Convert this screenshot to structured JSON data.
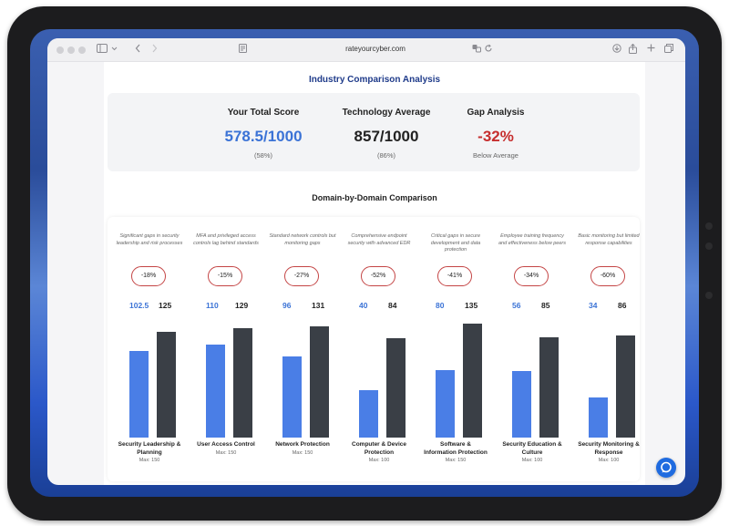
{
  "browser": {
    "url": "rateyourcyber.com"
  },
  "page": {
    "title": "Industry Comparison Analysis",
    "summary": {
      "your_score": {
        "label": "Your Total Score",
        "value": "578.5/1000",
        "sub": "(58%)"
      },
      "tech_average": {
        "label": "Technology Average",
        "value": "857/1000",
        "sub": "(86%)"
      },
      "gap": {
        "label": "Gap Analysis",
        "value": "-32%",
        "sub": "Below Average"
      }
    },
    "domain_section_title": "Domain-by-Domain Comparison",
    "colors": {
      "you": "#4a7ee6",
      "average": "#3a3f46",
      "gap_border": "#c44545",
      "title": "#1f3b8a",
      "gap_text": "#c62e2e"
    },
    "domains": [
      {
        "name_line1": "Security Leadership &",
        "name_line2": "Planning",
        "description": "Significant gaps in security leadership and risk processes",
        "gap": "-18%",
        "you": "102.5",
        "avg": "125",
        "max_label": "Max: 150",
        "you_value": 102.5,
        "avg_value": 125,
        "max": 150
      },
      {
        "name_line1": "User Access Control",
        "name_line2": "",
        "description": "MFA and privileged access controls lag behind standards",
        "gap": "-15%",
        "you": "110",
        "avg": "129",
        "max_label": "Max: 150",
        "you_value": 110,
        "avg_value": 129,
        "max": 150
      },
      {
        "name_line1": "Network Protection",
        "name_line2": "",
        "description": "Standard network controls but monitoring gaps",
        "gap": "-27%",
        "you": "96",
        "avg": "131",
        "max_label": "Max: 150",
        "you_value": 96,
        "avg_value": 131,
        "max": 150
      },
      {
        "name_line1": "Computer & Device",
        "name_line2": "Protection",
        "description": "Comprehensive endpoint security with advanced EDR",
        "gap": "-52%",
        "you": "40",
        "avg": "84",
        "max_label": "Max: 100",
        "you_value": 40,
        "avg_value": 84,
        "max": 100
      },
      {
        "name_line1": "Software &",
        "name_line2": "Information Protection",
        "description": "Critical gaps in secure development and data protection",
        "gap": "-41%",
        "you": "80",
        "avg": "135",
        "max_label": "Max: 150",
        "you_value": 80,
        "avg_value": 135,
        "max": 150
      },
      {
        "name_line1": "Security Education &",
        "name_line2": "Culture",
        "description": "Employee training frequency and effectiveness below peers",
        "gap": "-34%",
        "you": "56",
        "avg": "85",
        "max_label": "Max: 100",
        "you_value": 56,
        "avg_value": 85,
        "max": 100
      },
      {
        "name_line1": "Security Monitoring &",
        "name_line2": "Response",
        "description": "Basic monitoring but limited response capabilities",
        "gap": "-60%",
        "you": "34",
        "avg": "86",
        "max_label": "Max: 100",
        "you_value": 34,
        "avg_value": 86,
        "max": 100
      }
    ]
  },
  "icons": {
    "sidebar": "sidebar-icon",
    "back": "chevron-left-icon",
    "forward": "chevron-right-icon",
    "reader": "reader-icon",
    "translate": "translate-icon",
    "reload": "reload-icon",
    "download": "download-icon",
    "share": "share-icon",
    "new_tab": "plus-icon",
    "tabs": "tabs-icon",
    "chat": "chat-bubble-icon"
  }
}
